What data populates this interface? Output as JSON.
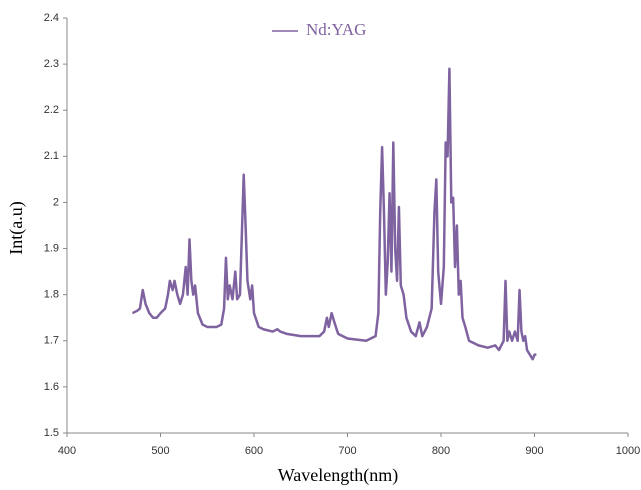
{
  "chart_data": {
    "type": "line",
    "x_label": "Wavelength(nm)",
    "y_label": "Int(a.u)",
    "legend": "top",
    "x": [
      470,
      475,
      478,
      481,
      484,
      488,
      492,
      496,
      500,
      505,
      508,
      510,
      513,
      515,
      518,
      521,
      524,
      527,
      529,
      531,
      533,
      535,
      537,
      540,
      545,
      550,
      560,
      565,
      568,
      570,
      572,
      574,
      577,
      580,
      582,
      585,
      587,
      589,
      591,
      593,
      596,
      598,
      600,
      605,
      610,
      620,
      625,
      628,
      635,
      650,
      670,
      675,
      678,
      680,
      683,
      686,
      690,
      700,
      720,
      730,
      733,
      735,
      737,
      739,
      741,
      743,
      745,
      747,
      749,
      751,
      753,
      755,
      757,
      760,
      763,
      768,
      773,
      777,
      780,
      785,
      790,
      793,
      795,
      797,
      800,
      803,
      805,
      807,
      809,
      811,
      813,
      815,
      817,
      819,
      821,
      823,
      826,
      830,
      840,
      850,
      858,
      862,
      867,
      869,
      871,
      873,
      876,
      879,
      882,
      884,
      886,
      888,
      890,
      892,
      895,
      898,
      900,
      902
    ],
    "series": [
      {
        "name": "Nd:YAG",
        "color": "#7f62a0",
        "values": [
          1.76,
          1.765,
          1.77,
          1.81,
          1.78,
          1.76,
          1.75,
          1.75,
          1.76,
          1.77,
          1.8,
          1.83,
          1.81,
          1.83,
          1.8,
          1.78,
          1.8,
          1.86,
          1.8,
          1.92,
          1.83,
          1.8,
          1.82,
          1.76,
          1.735,
          1.73,
          1.73,
          1.735,
          1.77,
          1.88,
          1.79,
          1.82,
          1.79,
          1.85,
          1.79,
          1.8,
          1.93,
          2.06,
          1.95,
          1.83,
          1.79,
          1.82,
          1.76,
          1.73,
          1.725,
          1.72,
          1.725,
          1.72,
          1.715,
          1.71,
          1.71,
          1.72,
          1.75,
          1.73,
          1.76,
          1.74,
          1.715,
          1.705,
          1.7,
          1.71,
          1.76,
          1.98,
          2.12,
          1.98,
          1.8,
          1.87,
          2.02,
          1.85,
          2.13,
          1.9,
          1.83,
          1.99,
          1.82,
          1.8,
          1.75,
          1.72,
          1.71,
          1.74,
          1.71,
          1.73,
          1.77,
          1.98,
          2.05,
          1.85,
          1.78,
          1.86,
          2.13,
          2.1,
          2.29,
          2,
          2.01,
          1.86,
          1.95,
          1.8,
          1.83,
          1.75,
          1.73,
          1.7,
          1.69,
          1.685,
          1.69,
          1.68,
          1.7,
          1.83,
          1.7,
          1.72,
          1.7,
          1.72,
          1.7,
          1.81,
          1.72,
          1.7,
          1.71,
          1.68,
          1.67,
          1.66,
          1.67,
          1.67
        ]
      }
    ],
    "xlim": [
      400,
      1000
    ],
    "xticks": [
      400,
      500,
      600,
      700,
      800,
      900,
      1000
    ],
    "ylim": [
      1.5,
      2.4
    ],
    "yticks": [
      1.5,
      1.6,
      1.7,
      1.8,
      1.9,
      2,
      2.1,
      2.2,
      2.3,
      2.4
    ],
    "grid": false
  }
}
